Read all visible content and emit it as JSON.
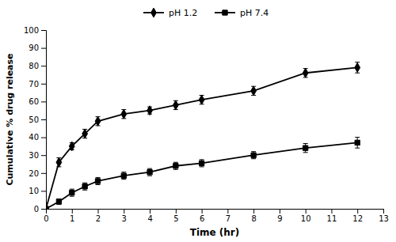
{
  "chart_data": {
    "type": "line",
    "x": [
      0,
      0.5,
      1.0,
      1.5,
      2.0,
      3.0,
      4.0,
      5.0,
      6.0,
      8.0,
      10.0,
      12.0
    ],
    "series": [
      {
        "name": "pH 1.2",
        "color": "black",
        "marker": "diamond",
        "line_style": "solid",
        "values": [
          0,
          26,
          35,
          42,
          49,
          53,
          55,
          58,
          61,
          66,
          76,
          79
        ],
        "yerr": [
          0,
          2.5,
          2.0,
          2.5,
          2.5,
          2.5,
          2.0,
          2.5,
          2.5,
          2.5,
          2.5,
          3.0
        ]
      },
      {
        "name": "pH 7.4",
        "color": "black",
        "marker": "square",
        "line_style": "solid",
        "values": [
          0,
          4,
          9,
          12.5,
          15.5,
          18.5,
          20.5,
          24,
          25.5,
          30,
          34,
          37
        ],
        "yerr": [
          0,
          1.5,
          2.0,
          2.0,
          2.0,
          2.0,
          2.0,
          2.0,
          2.0,
          2.0,
          2.5,
          3.0
        ]
      }
    ],
    "xlabel": "Time (hr)",
    "ylabel": "Cumulative % drug release",
    "xlim": [
      0,
      13
    ],
    "ylim": [
      0,
      100
    ],
    "xticks": [
      0,
      1,
      2,
      3,
      4,
      5,
      6,
      7,
      8,
      9,
      10,
      11,
      12,
      13
    ],
    "yticks": [
      0,
      10,
      20,
      30,
      40,
      50,
      60,
      70,
      80,
      90,
      100
    ],
    "grid": false,
    "legend": "top"
  }
}
